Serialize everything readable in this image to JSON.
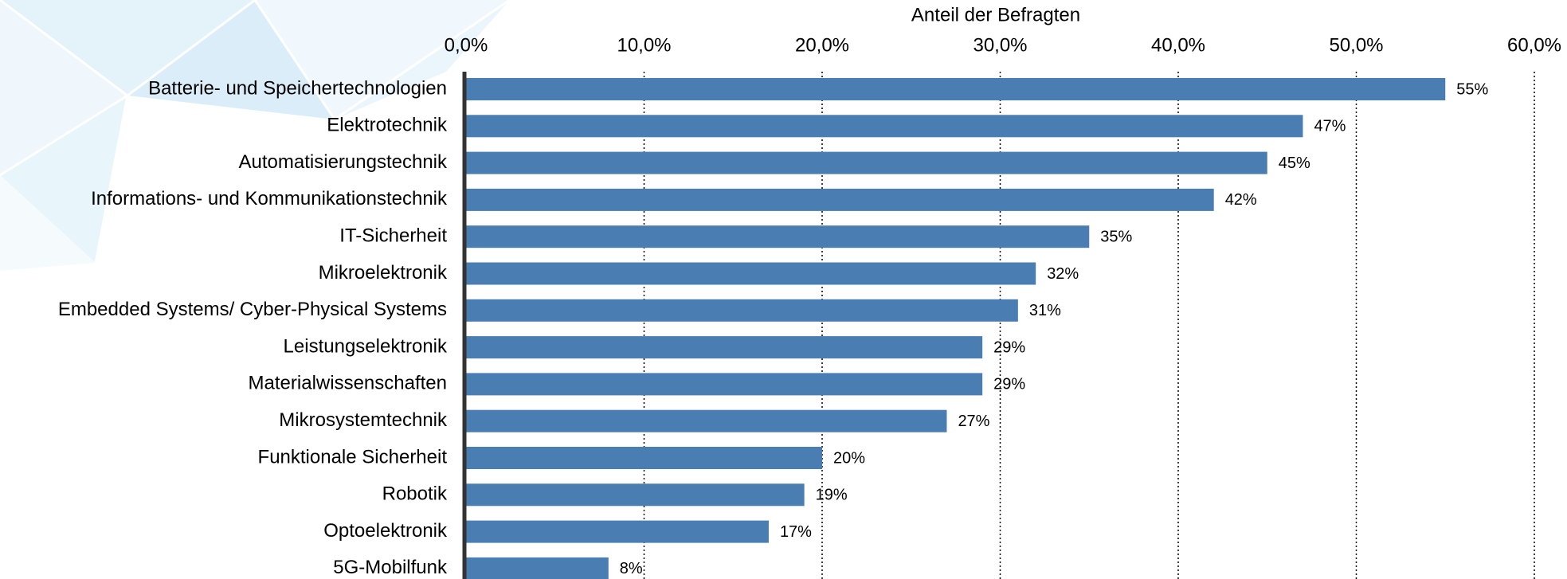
{
  "chart_data": {
    "type": "bar",
    "orientation": "horizontal",
    "x_label": "Anteil der Befragten",
    "categories": [
      "Batterie- und Speichertechnologien",
      "Elektrotechnik",
      "Automatisierungstechnik",
      "Informations- und Kommunikationstechnik",
      "IT-Sicherheit",
      "Mikroelektronik",
      "Embedded Systems/ Cyber-Physical Systems",
      "Leistungselektronik",
      "Materialwissenschaften",
      "Mikrosystemtechnik",
      "Funktionale Sicherheit",
      "Robotik",
      "Optoelektronik",
      "5G-Mobilfunk"
    ],
    "values": [
      55,
      47,
      45,
      42,
      35,
      32,
      31,
      29,
      29,
      27,
      20,
      19,
      17,
      8
    ],
    "value_labels": [
      "55%",
      "47%",
      "45%",
      "42%",
      "35%",
      "32%",
      "31%",
      "29%",
      "29%",
      "27%",
      "20%",
      "19%",
      "17%",
      "8%"
    ],
    "color": "#4a7db1",
    "xlim": [
      0,
      60
    ],
    "xticks": [
      {
        "value": 0,
        "label": "0,0%"
      },
      {
        "value": 10,
        "label": "10,0%"
      },
      {
        "value": 20,
        "label": "20,0%"
      },
      {
        "value": 30,
        "label": "30,0%"
      },
      {
        "value": 40,
        "label": "40,0%"
      },
      {
        "value": 50,
        "label": "50,0%"
      },
      {
        "value": 60,
        "label": "60,0%"
      }
    ],
    "grid": true
  }
}
